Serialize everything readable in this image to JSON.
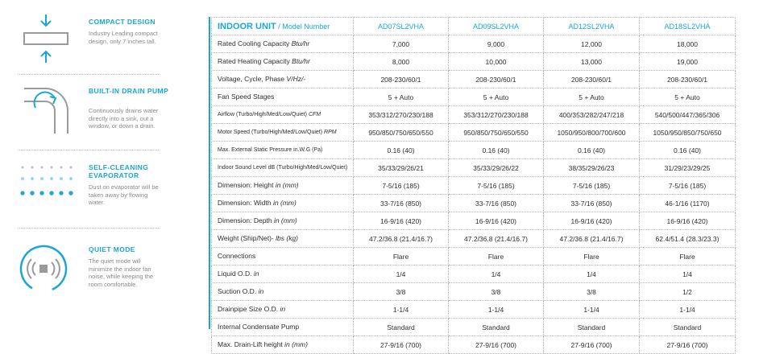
{
  "features": [
    {
      "title": "COMPACT DESIGN",
      "description": "Industry Leading compact design, only 7 inches tall.",
      "icon": "compact-design-icon"
    },
    {
      "title": "BUILT-IN DRAIN PUMP",
      "description": "Continuously drains water directly into a sink, out a window, or down a drain.",
      "icon": "drain-pump-icon"
    },
    {
      "title": "SELF-CLEANING EVAPORATOR",
      "description": "Dust on evaporator will be taken away by flowing water.",
      "icon": "self-cleaning-icon"
    },
    {
      "title": "QUIET MODE",
      "description": "The quiet mode will minimize the indoor fan noise, while keeping the room comfortable.",
      "icon": "quiet-mode-icon"
    }
  ],
  "accent_color": "#1aa6d6",
  "table": {
    "header_label": "INDOOR UNIT",
    "header_sub": "/ Model Number",
    "models": [
      "AD07SL2VHA",
      "AD09SL2VHA",
      "AD12SL2VHA",
      "AD18SL2VHA"
    ],
    "rows": [
      {
        "label": "Rated Cooling Capacity",
        "unit": "Btu/hr",
        "values": [
          "7,000",
          "9,000",
          "12,000",
          "18,000"
        ]
      },
      {
        "label": "Rated Heating Capacity",
        "unit": "Btu/hr",
        "values": [
          "8,000",
          "10,000",
          "13,000",
          "19,000"
        ]
      },
      {
        "label": "Voltage, Cycle, Phase",
        "unit": "V/Hz/-",
        "values": [
          "208-230/60/1",
          "208-230/60/1",
          "208-230/60/1",
          "208-230/60/1"
        ]
      },
      {
        "label": "Fan Speed Stages",
        "unit": "",
        "values": [
          "5 + Auto",
          "5 + Auto",
          "5 + Auto",
          "5 + Auto"
        ]
      },
      {
        "label": "Airflow (Turbo/High/Med/Low/Quiet)",
        "unit": "CFM",
        "small": true,
        "values": [
          "353/312/270/230/188",
          "353/312/270/230/188",
          "400/353/282/247/218",
          "540/500/447/365/306"
        ]
      },
      {
        "label": "Motor Speed (Turbo/High/Med/Low/Quiet)",
        "unit": "RPM",
        "small": true,
        "values": [
          "950/850/750/650/550",
          "950/850/750/650/550",
          "1050/950/800/700/600",
          "1050/950/850/750/650"
        ]
      },
      {
        "label": "Max. External Static Pressure in.W.G (Pa)",
        "unit": "",
        "small": true,
        "values": [
          "0.16 (40)",
          "0.16 (40)",
          "0.16 (40)",
          "0.16 (40)"
        ]
      },
      {
        "label": "Indoor Sound Level dB (Turbo/High/Med/Low/Quiet)",
        "unit": "",
        "small": true,
        "values": [
          "35/33/29/26/21",
          "35/33/29/26/22",
          "38/35/29/26/23",
          "31/29/23/29/25"
        ]
      },
      {
        "label": "Dimension: Height",
        "unit": "in (mm)",
        "values": [
          "7-5/16 (185)",
          "7-5/16 (185)",
          "7-5/16 (185)",
          "7-5/16 (185)"
        ]
      },
      {
        "label": "Dimension: Width",
        "unit": "in (mm)",
        "values": [
          "33-7/16 (850)",
          "33-7/16 (850)",
          "33-7/16 (850)",
          "46-1/16 (1170)"
        ]
      },
      {
        "label": "Dimension: Depth",
        "unit": "in (mm)",
        "values": [
          "16-9/16 (420)",
          "16-9/16 (420)",
          "16-9/16 (420)",
          "16-9/16 (420)"
        ]
      },
      {
        "label": "Weight (Ship/Net)-",
        "unit": "lbs (kg)",
        "values": [
          "47.2/36.8 (21.4/16.7)",
          "47.2/36.8 (21.4/16.7)",
          "47.2/36.8 (21.4/16.7)",
          "62.4/51.4 (28.3/23.3)"
        ]
      },
      {
        "label": "Connections",
        "unit": "",
        "values": [
          "Flare",
          "Flare",
          "Flare",
          "Flare"
        ]
      },
      {
        "label": "Liquid O.D.",
        "unit": "in",
        "values": [
          "1/4",
          "1/4",
          "1/4",
          "1/4"
        ]
      },
      {
        "label": "Suction O.D.",
        "unit": "in",
        "values": [
          "3/8",
          "3/8",
          "3/8",
          "1/2"
        ]
      },
      {
        "label": "Drainpipe Size O.D.",
        "unit": "in",
        "values": [
          "1-1/4",
          "1-1/4",
          "1-1/4",
          "1-1/4"
        ]
      },
      {
        "label": "Internal Condensate Pump",
        "unit": "",
        "values": [
          "Standard",
          "Standard",
          "Standard",
          "Standard"
        ]
      },
      {
        "label": "Max. Drain-Lift height",
        "unit": "in (mm)",
        "values": [
          "27-9/16 (700)",
          "27-9/16 (700)",
          "27-9/16 (700)",
          "27-9/16 (700)"
        ]
      }
    ]
  }
}
